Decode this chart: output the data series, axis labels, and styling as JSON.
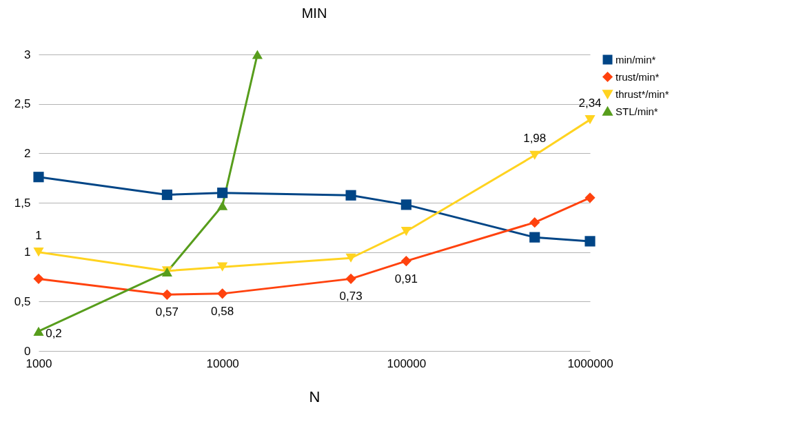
{
  "chart_data": {
    "type": "line",
    "title": "MIN",
    "xlabel": "N",
    "log": "x",
    "xlim": [
      1000,
      1000000
    ],
    "xticks": [
      1000,
      10000,
      100000,
      1000000
    ],
    "ylim": [
      0,
      3
    ],
    "yticks": [
      0,
      {
        "value": 0.5,
        "label": "0,5"
      },
      1,
      {
        "value": 1.5,
        "label": "1,5"
      },
      2,
      {
        "value": 2.5,
        "label": "2,5"
      },
      3
    ],
    "grid": "y",
    "legend": "right",
    "x": [
      1000,
      5000,
      10000,
      50000,
      100000,
      500000,
      1000000
    ],
    "series": [
      {
        "name": "min/min*",
        "color": "#004586",
        "marker": "square",
        "values": [
          1.76,
          1.58,
          1.6,
          1.575,
          1.48,
          1.15,
          1.11
        ]
      },
      {
        "name": "trust/min*",
        "color": "#ff420e",
        "marker": "diamond",
        "values": [
          0.73,
          0.57,
          0.58,
          0.73,
          0.91,
          1.3,
          1.55
        ],
        "value_labels": [
          null,
          "0,57",
          "0,58",
          "0,73",
          "0,91",
          null,
          null
        ]
      },
      {
        "name": "thrust*/min*",
        "color": "#ffd320",
        "marker": "triangle-down",
        "values": [
          1,
          0.81,
          0.85,
          0.94,
          1.21,
          1.98,
          2.34
        ],
        "value_labels": [
          "1",
          null,
          null,
          null,
          null,
          "1,98",
          "2,34"
        ]
      },
      {
        "name": "STL/min*",
        "color": "#579d1c",
        "marker": "triangle",
        "x": [
          1000,
          5000,
          10000,
          15500
        ],
        "values": [
          0.2,
          0.8,
          1.47,
          3
        ],
        "value_labels": [
          "0,2",
          null,
          null,
          null
        ]
      }
    ]
  }
}
